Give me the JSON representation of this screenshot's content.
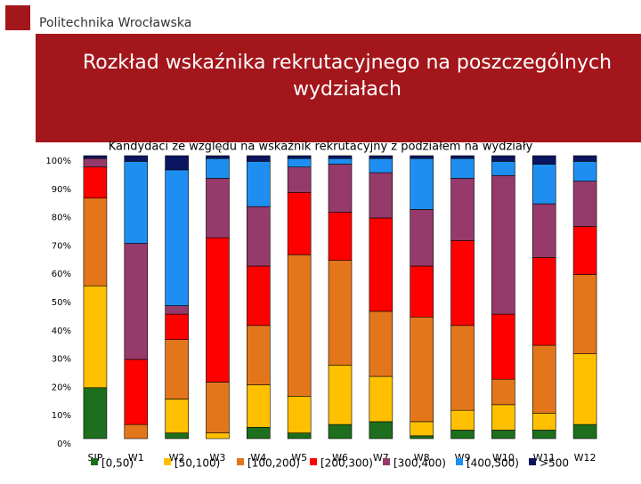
{
  "header": {
    "org": "Politechnika Wrocławska"
  },
  "chart_data": {
    "type": "bar",
    "stacked": true,
    "title": "Rozkład wskaźnika rekrutacyjnego na poszczególnych wydziałach",
    "subtitle": "Kandydaci ze względu na wskaźnik rekrutacyjny z podziałem na wydziały",
    "categories": [
      "SJP",
      "W1",
      "W2",
      "W3",
      "W4",
      "W5",
      "W6",
      "W7",
      "W8",
      "W9",
      "W10",
      "W11",
      "W12"
    ],
    "series": [
      {
        "name": "[0,50)",
        "color": "#1d6e1d",
        "values": [
          18,
          0,
          2,
          0,
          4,
          2,
          5,
          6,
          1,
          3,
          3,
          3,
          5
        ]
      },
      {
        "name": "[50,100)",
        "color": "#ffc000",
        "values": [
          36,
          0,
          12,
          2,
          15,
          13,
          21,
          16,
          5,
          7,
          9,
          6,
          25
        ]
      },
      {
        "name": "[100,200)",
        "color": "#e3761b",
        "values": [
          31,
          5,
          21,
          18,
          21,
          50,
          37,
          23,
          37,
          30,
          9,
          24,
          28
        ]
      },
      {
        "name": "[200,300)",
        "color": "#ff0000",
        "values": [
          11,
          23,
          9,
          51,
          21,
          22,
          17,
          33,
          18,
          30,
          23,
          31,
          17
        ]
      },
      {
        "name": "[300,400)",
        "color": "#953a6a",
        "values": [
          3,
          41,
          3,
          21,
          21,
          9,
          17,
          16,
          20,
          22,
          49,
          19,
          16
        ]
      },
      {
        "name": "[400,500)",
        "color": "#1e8ff0",
        "values": [
          0,
          29,
          48,
          7,
          16,
          3,
          2,
          5,
          18,
          7,
          5,
          14,
          7
        ]
      },
      {
        "name": ">500",
        "color": "#0c1560",
        "values": [
          1,
          2,
          5,
          1,
          2,
          1,
          1,
          1,
          1,
          1,
          2,
          3,
          2
        ]
      }
    ],
    "ylim": [
      0,
      100
    ],
    "yticks": [
      {
        "value": 0,
        "label": "0%"
      },
      {
        "value": 10,
        "label": "10%"
      },
      {
        "value": 20,
        "label": "20%"
      },
      {
        "value": 30,
        "label": "30%"
      },
      {
        "value": 40,
        "label": "40%"
      },
      {
        "value": 50,
        "label": "50%"
      },
      {
        "value": 60,
        "label": "60%"
      },
      {
        "value": 70,
        "label": "70%"
      },
      {
        "value": 80,
        "label": "80%"
      },
      {
        "value": 90,
        "label": "90%"
      },
      {
        "value": 100,
        "label": "100%"
      }
    ],
    "grid": false
  }
}
